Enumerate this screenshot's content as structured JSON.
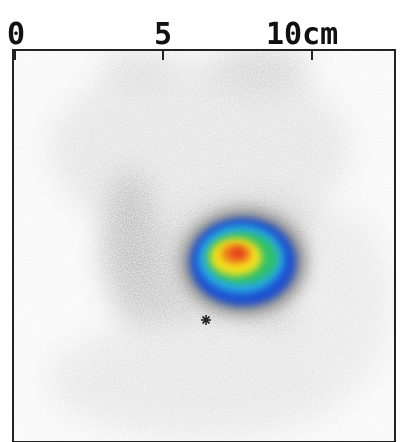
{
  "scale": {
    "labels": [
      "0",
      "5",
      "10cm"
    ]
  }
}
